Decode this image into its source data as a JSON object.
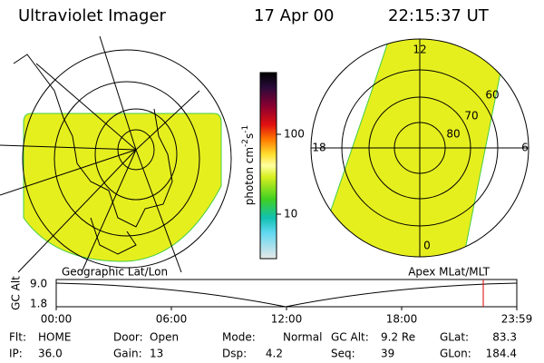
{
  "header": {
    "title": "Ultraviolet Imager",
    "date": "17 Apr 00",
    "time": "22:15:37 UT"
  },
  "colorbar": {
    "label": [
      "photon cm",
      "-2",
      "s",
      "-1"
    ],
    "ticks": [
      "100",
      "10"
    ]
  },
  "polar": {
    "mlt_labels": [
      "12",
      "18",
      "6",
      "0"
    ],
    "mlat_labels": [
      "60",
      "70",
      "80"
    ]
  },
  "timeline": {
    "left_title": "Geographic Lat/Lon",
    "right_title": "Apex MLat/MLT",
    "y_label": "GC Alt",
    "y_ticks": [
      "9.0",
      "1.8"
    ],
    "x_ticks": [
      "00:00",
      "06:00",
      "12:00",
      "18:00",
      "23:59"
    ]
  },
  "info": {
    "rows": [
      [
        {
          "label": "Flt:",
          "value": "HOME"
        },
        {
          "label": "Door:",
          "value": "Open"
        },
        {
          "label": "Mode:",
          "value": "Normal"
        },
        {
          "label": "GC Alt:",
          "value": "9.2 Re"
        },
        {
          "label": "GLat:",
          "value": "83.3"
        }
      ],
      [
        {
          "label": "IP:",
          "value": "36.0"
        },
        {
          "label": "Gain:",
          "value": "13"
        },
        {
          "label": "Dsp:",
          "value": "4.2"
        },
        {
          "label": "Seq:",
          "value": "39"
        },
        {
          "label": "GLon:",
          "value": "184.4"
        }
      ]
    ]
  }
}
